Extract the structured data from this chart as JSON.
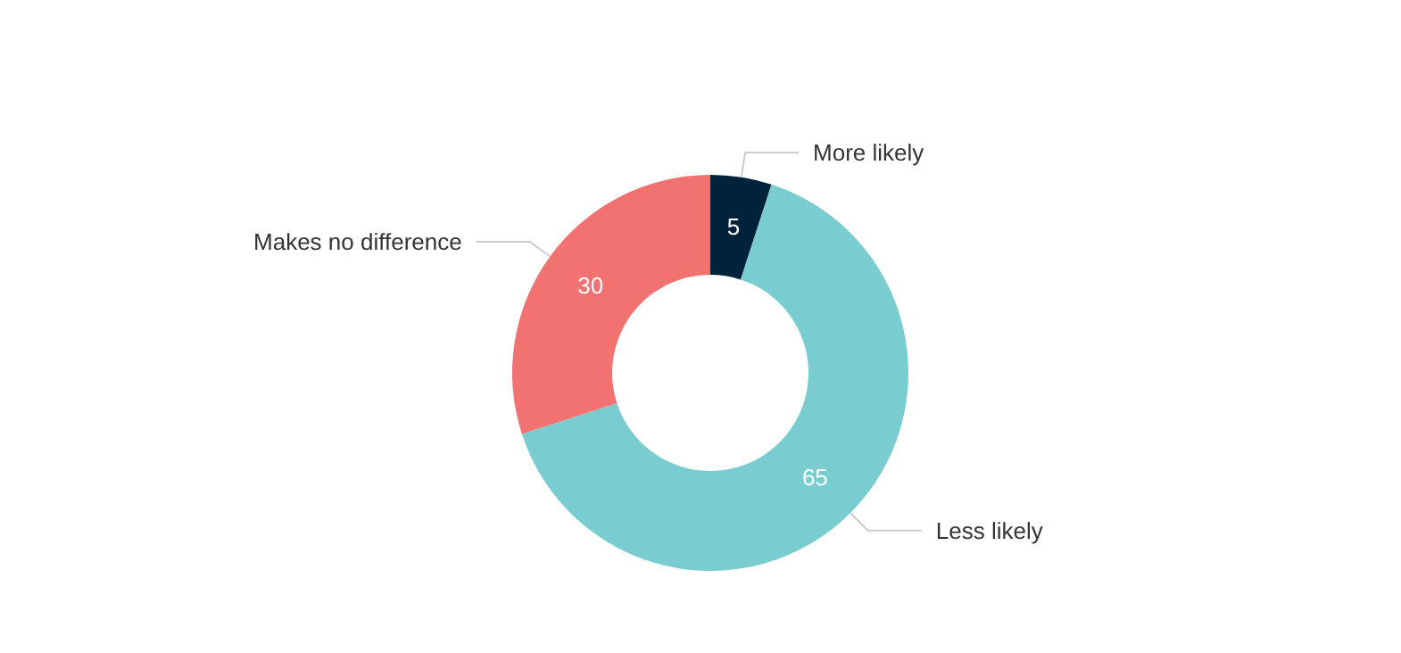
{
  "chart_data": {
    "type": "donut",
    "categories": [
      "More likely",
      "Less likely",
      "Makes no difference"
    ],
    "values": [
      5,
      65,
      30
    ],
    "colors": [
      "#00223a",
      "#79cdd0",
      "#f27171"
    ],
    "data_labels": true
  }
}
